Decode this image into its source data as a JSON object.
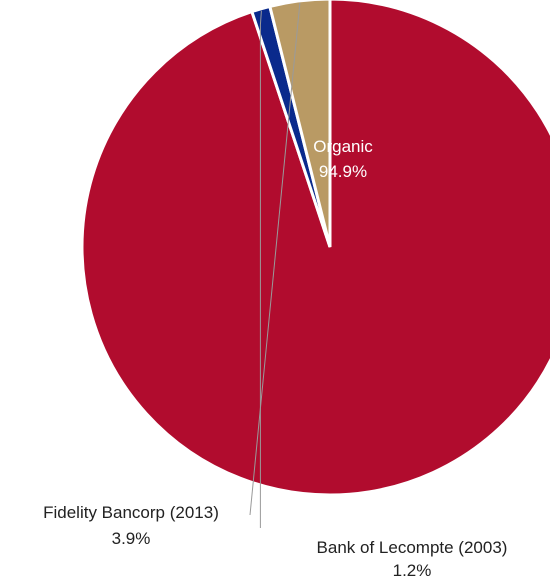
{
  "chart_data": {
    "type": "pie",
    "title": "",
    "slices": [
      {
        "label": "Organic",
        "value": 94.9,
        "value_label": "94.9%",
        "color": "#b10c2e"
      },
      {
        "label": "Bank of Lecompte (2003)",
        "value": 1.2,
        "value_label": "1.2%",
        "color": "#0a2a8c"
      },
      {
        "label": "Fidelity Bancorp (2013)",
        "value": 3.9,
        "value_label": "3.9%",
        "color": "#b99a64"
      }
    ],
    "start_direction": "12 o'clock",
    "order": "clockwise",
    "legend": "none"
  }
}
